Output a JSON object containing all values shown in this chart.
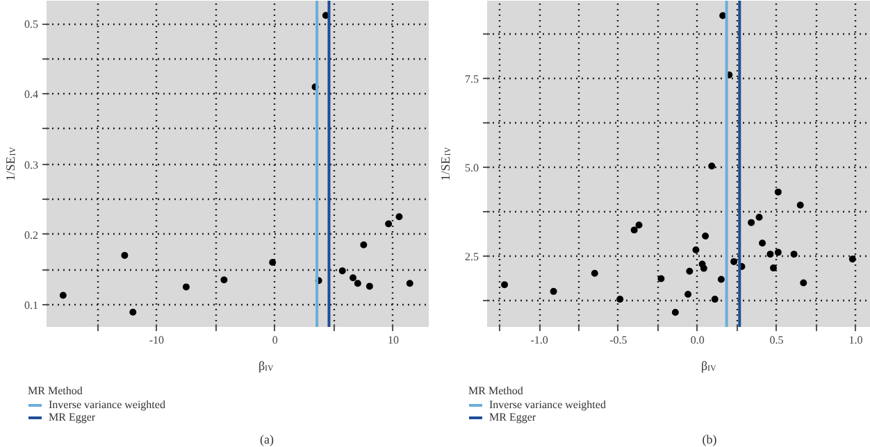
{
  "chart_data": [
    {
      "type": "scatter",
      "xlabel": "β$_{IV}$",
      "ylabel": "1/SE$_{IV}$",
      "legend_title": "MR Method",
      "legend": "bottom",
      "grid": true,
      "marker": "circle",
      "xlim": [
        -19.3,
        13.0
      ],
      "ylim": [
        0.068,
        0.533
      ],
      "xticks": [
        {
          "value": -15,
          "label": null
        },
        -10,
        {
          "value": -5,
          "label": null
        },
        0,
        {
          "value": 5,
          "label": null
        },
        10
      ],
      "yticks": [
        0.1,
        {
          "value": 0.15,
          "label": null
        },
        0.2,
        {
          "value": 0.25,
          "label": null
        },
        0.3,
        {
          "value": 0.35,
          "label": null
        },
        0.4,
        {
          "value": 0.45,
          "label": null
        },
        0.5
      ],
      "series": [
        {
          "color": "#000000",
          "x": [
            -17.9,
            -12.7,
            -12.0,
            -7.5,
            -4.3,
            -0.2,
            3.7,
            3.4,
            4.3,
            5.7,
            6.6,
            7.0,
            7.5,
            8.0,
            9.6,
            10.5,
            11.4
          ],
          "values": [
            0.113,
            0.17,
            0.089,
            0.125,
            0.135,
            0.16,
            0.134,
            0.41,
            0.512,
            0.148,
            0.138,
            0.13,
            0.185,
            0.126,
            0.215,
            0.225,
            0.13
          ]
        }
      ],
      "ref_lines": [
        {
          "axis": "x",
          "value": 3.55,
          "label": "Inverse variance weighted",
          "color": "#6aaed8"
        },
        {
          "axis": "x",
          "value": 4.57,
          "label": "MR Egger",
          "color": "#1f4e96"
        }
      ],
      "annotations": [
        "(a)"
      ]
    },
    {
      "type": "scatter",
      "xlabel": "β$_{IV}$",
      "ylabel": "1/SE$_{IV}$",
      "legend_title": "MR Method",
      "legend": "bottom",
      "grid": true,
      "marker": "circle",
      "xlim": [
        -1.33,
        1.095
      ],
      "ylim": [
        0.5,
        9.69
      ],
      "xticks": [
        {
          "value": -1.25,
          "label": null
        },
        {
          "value": -1.0,
          "label": "-1.0"
        },
        {
          "value": -0.75,
          "label": null
        },
        -0.5,
        {
          "value": -0.25,
          "label": null
        },
        {
          "value": 0.0,
          "label": "0.0"
        },
        {
          "value": 0.25,
          "label": null
        },
        0.5,
        {
          "value": 0.75,
          "label": null
        },
        {
          "value": 1.0,
          "label": "1.0"
        }
      ],
      "yticks": [
        {
          "value": 1.25,
          "label": null
        },
        2.5,
        {
          "value": 3.75,
          "label": null
        },
        {
          "value": 5.0,
          "label": "5.0"
        },
        {
          "value": 6.25,
          "label": null
        },
        7.5,
        {
          "value": 8.75,
          "label": null
        }
      ],
      "series": [
        {
          "color": "#000000",
          "x": [
            -1.22,
            -0.91,
            -0.65,
            -0.49,
            -0.4,
            -0.37,
            -0.23,
            -0.14,
            -0.06,
            -0.05,
            -0.01,
            0.03,
            0.04,
            0.05,
            0.09,
            0.11,
            0.15,
            0.16,
            0.2,
            0.23,
            0.28,
            0.34,
            0.39,
            0.41,
            0.46,
            0.48,
            0.51,
            0.51,
            0.61,
            0.65,
            0.67,
            0.98
          ],
          "values": [
            1.69,
            1.5,
            2.01,
            1.28,
            3.23,
            3.37,
            1.86,
            0.91,
            1.42,
            2.07,
            2.67,
            2.27,
            2.15,
            3.06,
            5.03,
            1.28,
            1.84,
            9.27,
            7.6,
            2.34,
            2.2,
            3.44,
            3.59,
            2.86,
            2.55,
            2.16,
            4.3,
            2.6,
            2.55,
            3.93,
            1.74,
            2.41
          ]
        }
      ],
      "ref_lines": [
        {
          "axis": "x",
          "value": 0.184,
          "label": "Inverse variance weighted",
          "color": "#6aaed8"
        },
        {
          "axis": "x",
          "value": 0.266,
          "label": "MR Egger",
          "color": "#1f4e96"
        }
      ],
      "annotations": [
        "(b)"
      ]
    }
  ]
}
